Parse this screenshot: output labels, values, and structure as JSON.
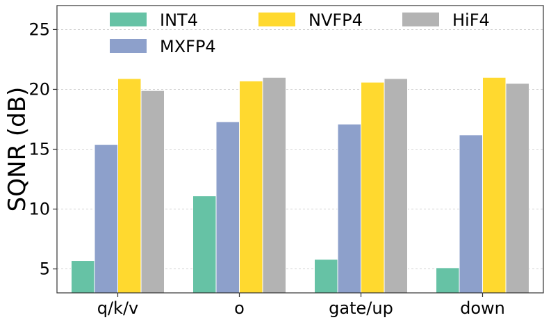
{
  "chart_data": {
    "type": "bar",
    "categories": [
      "q/k/v",
      "o",
      "gate/up",
      "down"
    ],
    "series": [
      {
        "name": "INT4",
        "color": "#66c2a5",
        "values": [
          5.7,
          11.1,
          5.8,
          5.1
        ]
      },
      {
        "name": "MXFP4",
        "color": "#8da0cb",
        "values": [
          15.4,
          17.3,
          17.1,
          16.2
        ]
      },
      {
        "name": "NVFP4",
        "color": "#ffd92f",
        "values": [
          20.9,
          20.7,
          20.6,
          21.0
        ]
      },
      {
        "name": "HiF4",
        "color": "#b3b3b3",
        "values": [
          19.9,
          21.0,
          20.9,
          20.5
        ]
      }
    ],
    "title": "",
    "xlabel": "",
    "ylabel": "SQNR (dB)",
    "ylim": [
      3,
      27
    ],
    "yticks": [
      5,
      10,
      15,
      20,
      25
    ],
    "grid": "horizontal dashed",
    "legend_position": "top"
  }
}
